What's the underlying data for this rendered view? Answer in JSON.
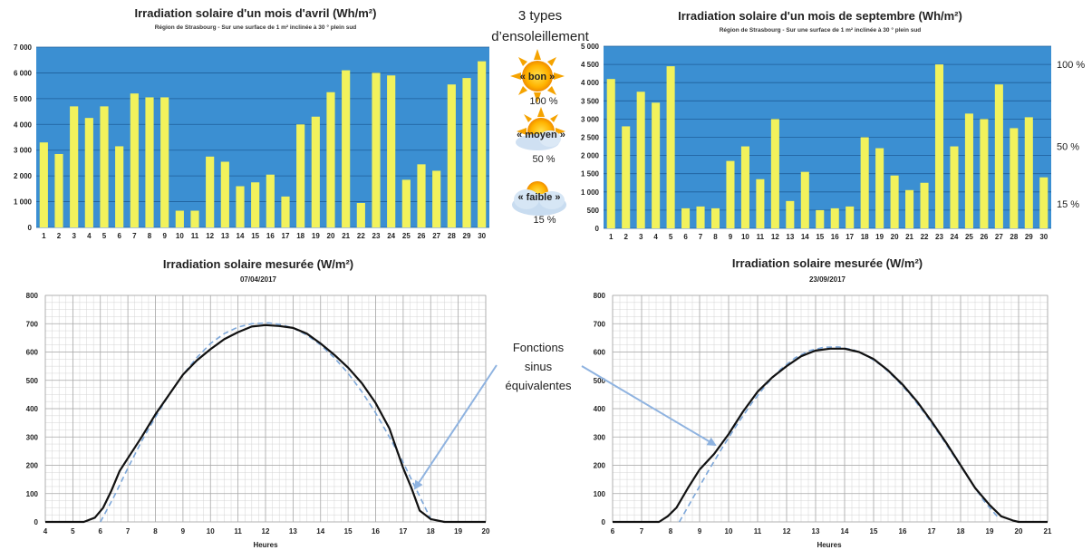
{
  "chart_data": [
    {
      "type": "bar",
      "title": "Irradiation solaire d'un mois d'avril (Wh/m²)",
      "subtitle": "Région de Strasbourg - Sur une surface de 1 m² inclinée à 30 ° plein sud",
      "categories": [
        "1",
        "2",
        "3",
        "4",
        "5",
        "6",
        "7",
        "8",
        "9",
        "10",
        "11",
        "12",
        "13",
        "14",
        "15",
        "16",
        "17",
        "18",
        "19",
        "20",
        "21",
        "22",
        "23",
        "24",
        "25",
        "26",
        "27",
        "28",
        "29",
        "30"
      ],
      "values": [
        3300,
        2850,
        4700,
        4250,
        4700,
        3150,
        5200,
        5050,
        5050,
        650,
        650,
        2750,
        2550,
        1600,
        1750,
        2050,
        1200,
        4000,
        4300,
        5250,
        6100,
        950,
        6000,
        5900,
        1850,
        2450,
        2200,
        5550,
        5800,
        6450
      ],
      "ylim": [
        0,
        7000
      ],
      "yticks": [
        "0",
        "1 000",
        "2 000",
        "3 000",
        "4 000",
        "5 000",
        "6 000",
        "7 000"
      ],
      "bar_color": "#f2f25c",
      "bg_color": "#3b8fd2"
    },
    {
      "type": "bar",
      "title": "Irradiation solaire d'un mois de septembre (Wh/m²)",
      "subtitle": "Région de Strasbourg - Sur une surface de 1 m² inclinée à 30 ° plein sud",
      "categories": [
        "1",
        "2",
        "3",
        "4",
        "5",
        "6",
        "7",
        "8",
        "9",
        "10",
        "11",
        "12",
        "13",
        "14",
        "15",
        "16",
        "17",
        "18",
        "19",
        "20",
        "21",
        "22",
        "23",
        "24",
        "25",
        "26",
        "27",
        "28",
        "29",
        "30"
      ],
      "values": [
        4100,
        2800,
        3750,
        3450,
        4450,
        550,
        600,
        550,
        1850,
        2250,
        1350,
        3000,
        750,
        1550,
        500,
        550,
        600,
        2500,
        2200,
        1450,
        1050,
        1250,
        4500,
        2250,
        3150,
        3000,
        3950,
        2750,
        3050,
        1400
      ],
      "ylim": [
        0,
        5000
      ],
      "yticks": [
        "0",
        "500",
        "1 000",
        "1 500",
        "2 000",
        "2 500",
        "3 000",
        "3 500",
        "4 000",
        "4 500",
        "5 000"
      ],
      "right_labels": [
        "100 %",
        "50 %",
        "15 %"
      ],
      "right_label_values": [
        4500,
        2250,
        675
      ],
      "bar_color": "#f2f25c",
      "bg_color": "#3b8fd2"
    },
    {
      "type": "line",
      "title": "Irradiation solaire mesurée (W/m²)",
      "subtitle": "07/04/2017",
      "xlabel": "Heures",
      "xlim": [
        4,
        20
      ],
      "ylim": [
        0,
        800
      ],
      "xticks": [
        "4",
        "5",
        "6",
        "7",
        "8",
        "9",
        "10",
        "11",
        "12",
        "13",
        "14",
        "15",
        "16",
        "17",
        "18",
        "19",
        "20"
      ],
      "yticks": [
        "0",
        "100",
        "200",
        "300",
        "400",
        "500",
        "600",
        "700",
        "800"
      ],
      "series": [
        {
          "points": [
            [
              4,
              0
            ],
            [
              5.4,
              0
            ],
            [
              5.8,
              15
            ],
            [
              6.1,
              50
            ],
            [
              6.4,
              110
            ],
            [
              6.7,
              180
            ],
            [
              7,
              225
            ],
            [
              7.5,
              300
            ],
            [
              8,
              380
            ],
            [
              8.5,
              450
            ],
            [
              9,
              520
            ],
            [
              9.5,
              570
            ],
            [
              10,
              610
            ],
            [
              10.5,
              645
            ],
            [
              11,
              670
            ],
            [
              11.5,
              690
            ],
            [
              12,
              695
            ],
            [
              12.5,
              692
            ],
            [
              13,
              685
            ],
            [
              13.5,
              665
            ],
            [
              14,
              630
            ],
            [
              14.5,
              590
            ],
            [
              15,
              545
            ],
            [
              15.5,
              490
            ],
            [
              16,
              420
            ],
            [
              16.5,
              330
            ],
            [
              17,
              190
            ],
            [
              17.3,
              120
            ],
            [
              17.6,
              40
            ],
            [
              18,
              10
            ],
            [
              18.5,
              0
            ],
            [
              20,
              0
            ]
          ]
        },
        {
          "points": [
            [
              6,
              0
            ],
            [
              6.5,
              90
            ],
            [
              7,
              190
            ],
            [
              7.5,
              285
            ],
            [
              8,
              370
            ],
            [
              8.5,
              450
            ],
            [
              9,
              520
            ],
            [
              9.5,
              580
            ],
            [
              10,
              630
            ],
            [
              10.5,
              665
            ],
            [
              11,
              688
            ],
            [
              11.5,
              700
            ],
            [
              12.1,
              703
            ],
            [
              12.5,
              698
            ],
            [
              13,
              685
            ],
            [
              13.5,
              660
            ],
            [
              14,
              625
            ],
            [
              14.5,
              580
            ],
            [
              15,
              525
            ],
            [
              15.5,
              460
            ],
            [
              16,
              385
            ],
            [
              16.5,
              300
            ],
            [
              17,
              210
            ],
            [
              17.5,
              110
            ],
            [
              18,
              10
            ]
          ]
        }
      ]
    },
    {
      "type": "line",
      "title": "Irradiation solaire mesurée (W/m²)",
      "subtitle": "23/09/2017",
      "xlabel": "Heures",
      "xlim": [
        6,
        21
      ],
      "ylim": [
        0,
        800
      ],
      "xticks": [
        "6",
        "7",
        "8",
        "9",
        "10",
        "11",
        "12",
        "13",
        "14",
        "15",
        "16",
        "17",
        "18",
        "19",
        "20",
        "21"
      ],
      "yticks": [
        "0",
        "100",
        "200",
        "300",
        "400",
        "500",
        "600",
        "700",
        "800"
      ],
      "series": [
        {
          "points": [
            [
              6,
              0
            ],
            [
              7.6,
              0
            ],
            [
              7.9,
              20
            ],
            [
              8.2,
              50
            ],
            [
              8.6,
              120
            ],
            [
              9,
              185
            ],
            [
              9.5,
              240
            ],
            [
              10,
              310
            ],
            [
              10.5,
              390
            ],
            [
              11,
              460
            ],
            [
              11.5,
              510
            ],
            [
              12,
              550
            ],
            [
              12.5,
              585
            ],
            [
              13,
              605
            ],
            [
              13.5,
              612
            ],
            [
              14,
              612
            ],
            [
              14.5,
              600
            ],
            [
              15,
              575
            ],
            [
              15.5,
              535
            ],
            [
              16,
              485
            ],
            [
              16.5,
              425
            ],
            [
              17,
              355
            ],
            [
              17.5,
              280
            ],
            [
              18,
              200
            ],
            [
              18.5,
              120
            ],
            [
              19,
              60
            ],
            [
              19.4,
              20
            ],
            [
              19.8,
              5
            ],
            [
              20,
              0
            ],
            [
              21,
              0
            ]
          ]
        },
        {
          "points": [
            [
              8.3,
              0
            ],
            [
              8.8,
              90
            ],
            [
              9.3,
              180
            ],
            [
              9.8,
              265
            ],
            [
              10.3,
              345
            ],
            [
              10.8,
              420
            ],
            [
              11.3,
              485
            ],
            [
              11.8,
              540
            ],
            [
              12.3,
              580
            ],
            [
              12.8,
              605
            ],
            [
              13.3,
              617
            ],
            [
              13.8,
              618
            ],
            [
              14.3,
              608
            ],
            [
              14.8,
              585
            ],
            [
              15.3,
              550
            ],
            [
              15.8,
              502
            ],
            [
              16.3,
              445
            ],
            [
              16.8,
              378
            ],
            [
              17.3,
              305
            ],
            [
              17.8,
              228
            ],
            [
              18.3,
              150
            ],
            [
              18.8,
              75
            ],
            [
              19.3,
              15
            ]
          ]
        }
      ]
    }
  ],
  "middle": {
    "title_line1": "3 types",
    "title_line2": "d’ensoleillement",
    "types": [
      {
        "label": "« bon »",
        "percent": "100 %"
      },
      {
        "label": "« moyen »",
        "percent": "50 %"
      },
      {
        "label": "« faible »",
        "percent": "15 %"
      }
    ]
  },
  "annotation": {
    "line1": "Fonctions",
    "line2": "sinus",
    "line3": "équivalentes"
  },
  "colors": {
    "plot_bg": "#3b8fd2",
    "bar": "#f2f25c",
    "measured_line": "#111111",
    "sine_line": "#7da7d9",
    "arrow": "#8fb3e0"
  }
}
